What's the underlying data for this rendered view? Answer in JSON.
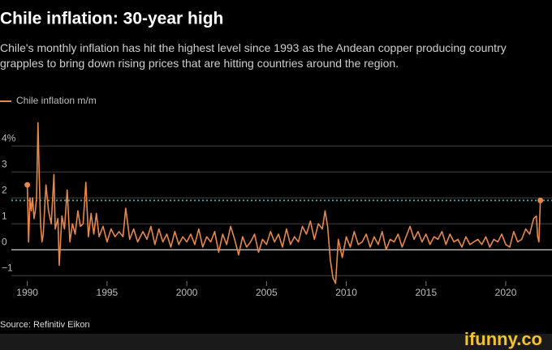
{
  "chart_data": {
    "type": "line",
    "title": "Chile inflation: 30-year high",
    "subtitle": "Chile's monthly inflation has hit the highest level since 1993 as the Andean copper producing country grapples to bring down rising prices that are hitting countries around the region.",
    "source": "Source: Refinitiv Eikon",
    "watermark": "ifunny.co",
    "reference_line": 1.9,
    "xlim": [
      1989,
      2022.9
    ],
    "xticks": [
      1990,
      1995,
      2000,
      2005,
      2010,
      2015,
      2020
    ],
    "ylim": [
      -1.4,
      5.1
    ],
    "yticks": [
      {
        "value": -1,
        "label": "−1"
      },
      0,
      1,
      2,
      3,
      {
        "value": 4,
        "label": "4%"
      }
    ],
    "x": [
      1990.0,
      1990.08,
      1990.17,
      1990.25,
      1990.33,
      1990.42,
      1990.5,
      1990.58,
      1990.67,
      1990.75,
      1990.83,
      1990.92,
      1991.0,
      1991.17,
      1991.33,
      1991.5,
      1991.67,
      1991.75,
      1991.92,
      1992.0,
      1992.17,
      1992.33,
      1992.5,
      1992.67,
      1992.83,
      1993.0,
      1993.17,
      1993.33,
      1993.5,
      1993.67,
      1993.83,
      1994.0,
      1994.17,
      1994.33,
      1994.5,
      1994.75,
      1995.0,
      1995.25,
      1995.5,
      1995.75,
      1996.0,
      1996.17,
      1996.42,
      1996.67,
      1996.92,
      1997.25,
      1997.5,
      1997.75,
      1998.0,
      1998.25,
      1998.5,
      1998.75,
      1999.0,
      1999.25,
      1999.5,
      1999.75,
      2000.0,
      2000.25,
      2000.5,
      2000.75,
      2001.0,
      2001.25,
      2001.5,
      2001.75,
      2002.0,
      2002.25,
      2002.5,
      2002.75,
      2003.0,
      2003.25,
      2003.5,
      2003.75,
      2004.0,
      2004.25,
      2004.5,
      2004.75,
      2005.0,
      2005.25,
      2005.5,
      2005.75,
      2006.0,
      2006.25,
      2006.5,
      2006.75,
      2007.0,
      2007.25,
      2007.5,
      2007.75,
      2008.0,
      2008.25,
      2008.5,
      2008.67,
      2008.83,
      2009.0,
      2009.17,
      2009.33,
      2009.5,
      2009.75,
      2010.0,
      2010.25,
      2010.5,
      2010.75,
      2011.0,
      2011.25,
      2011.5,
      2011.75,
      2012.0,
      2012.25,
      2012.5,
      2012.75,
      2013.0,
      2013.25,
      2013.5,
      2013.75,
      2014.0,
      2014.25,
      2014.5,
      2014.75,
      2015.0,
      2015.25,
      2015.5,
      2015.75,
      2016.0,
      2016.25,
      2016.5,
      2016.75,
      2017.0,
      2017.25,
      2017.5,
      2017.75,
      2018.0,
      2018.25,
      2018.5,
      2018.75,
      2019.0,
      2019.25,
      2019.5,
      2019.75,
      2020.0,
      2020.25,
      2020.5,
      2020.75,
      2021.0,
      2021.25,
      2021.5,
      2021.75,
      2021.92,
      2022.0,
      2022.08,
      2022.17
    ],
    "series": [
      {
        "name": "Chile inflation m/m",
        "color": "#e8874a",
        "values": [
          2.5,
          0.3,
          2.0,
          1.5,
          2.0,
          1.2,
          1.5,
          2.0,
          4.9,
          2.8,
          1.0,
          0.3,
          0.6,
          2.5,
          1.5,
          1.0,
          2.9,
          0.8,
          1.2,
          -0.6,
          1.3,
          0.8,
          2.3,
          0.3,
          1.0,
          0.6,
          1.5,
          0.9,
          1.0,
          2.6,
          0.5,
          1.4,
          0.6,
          1.4,
          0.5,
          0.9,
          0.3,
          0.8,
          0.5,
          0.7,
          0.5,
          1.6,
          0.4,
          0.8,
          0.3,
          0.7,
          0.4,
          0.9,
          0.2,
          0.8,
          0.3,
          0.6,
          0.1,
          0.7,
          0.2,
          0.5,
          0.3,
          0.6,
          0.2,
          0.8,
          0.1,
          0.5,
          0.3,
          0.7,
          -0.1,
          0.6,
          0.2,
          0.9,
          0.4,
          -0.2,
          0.5,
          0.1,
          0.3,
          0.6,
          -0.1,
          0.4,
          0.2,
          0.7,
          0.3,
          0.6,
          0.1,
          0.8,
          0.2,
          0.5,
          0.3,
          0.9,
          0.6,
          1.1,
          0.4,
          1.0,
          0.8,
          1.5,
          0.9,
          -0.4,
          -1.1,
          -1.3,
          0.4,
          -0.3,
          0.5,
          0.1,
          0.7,
          0.2,
          0.3,
          0.6,
          0.1,
          0.5,
          0.2,
          0.7,
          0.0,
          0.4,
          0.3,
          0.6,
          0.1,
          0.5,
          0.9,
          0.4,
          0.7,
          0.3,
          0.6,
          0.2,
          0.5,
          0.4,
          0.7,
          0.2,
          0.6,
          0.3,
          0.4,
          0.1,
          0.5,
          0.2,
          0.3,
          0.4,
          0.2,
          0.5,
          0.1,
          0.4,
          0.3,
          0.6,
          0.2,
          0.1,
          0.7,
          0.3,
          0.4,
          0.8,
          0.6,
          1.2,
          1.3,
          0.5,
          0.3,
          1.9
        ]
      }
    ]
  }
}
